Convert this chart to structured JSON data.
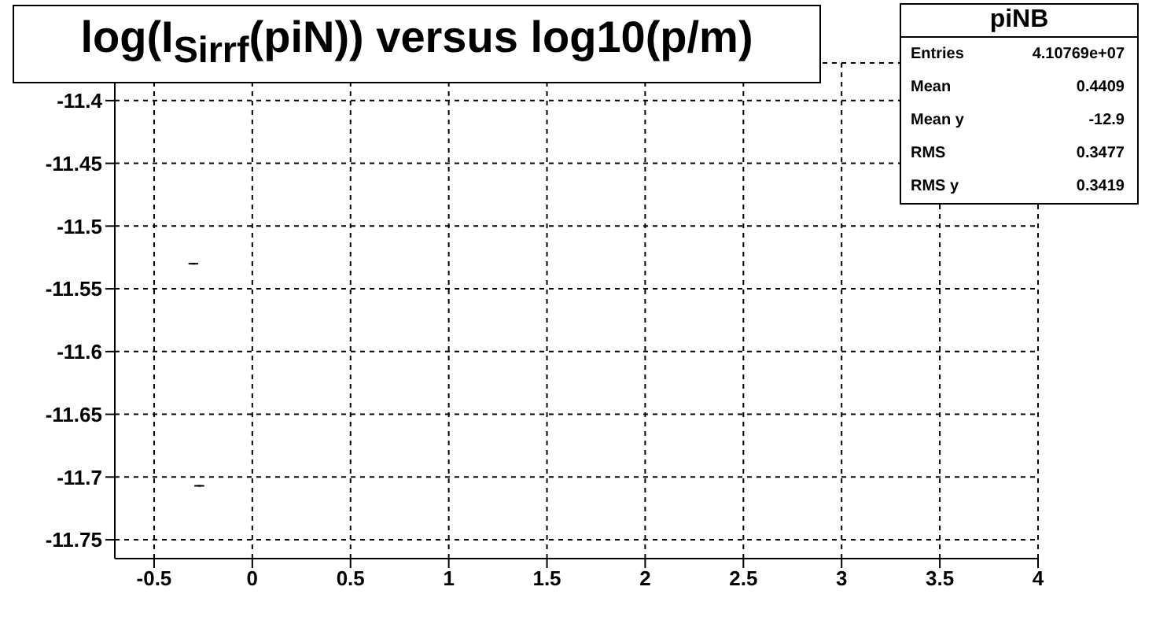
{
  "chart_data": {
    "type": "scatter",
    "title": "log(I$_{Sirrf}$(piN)) versus log10(p/m)",
    "x": [
      -0.3,
      -0.27
    ],
    "values": [
      -11.53,
      -11.707
    ],
    "xerrors": [
      0.025,
      0.025
    ],
    "color": "#000000",
    "xlim": [
      -0.7,
      4
    ],
    "xticks": [
      -0.5,
      0,
      0.5,
      1,
      1.5,
      2,
      2.5,
      3,
      3.5,
      4
    ],
    "ylim": [
      -11.765,
      -11.37
    ],
    "yticks": [
      -11.4,
      -11.45,
      -11.5,
      -11.55,
      -11.6,
      -11.65,
      -11.7,
      -11.75
    ],
    "grid": true,
    "annotations": [
      "piNB",
      "Entries",
      "4.10769e+07",
      "Mean",
      "0.4409",
      "Mean y",
      "-12.9",
      "RMS",
      "0.3477",
      "RMS y",
      "0.3419"
    ]
  }
}
